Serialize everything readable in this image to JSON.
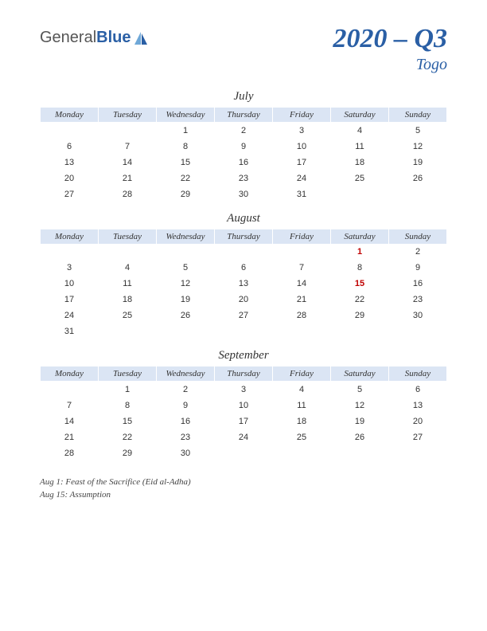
{
  "logo": {
    "part1": "General",
    "part2": "Blue"
  },
  "title": "2020 – Q3",
  "subtitle": "Togo",
  "weekdays": [
    "Monday",
    "Tuesday",
    "Wednesday",
    "Thursday",
    "Friday",
    "Saturday",
    "Sunday"
  ],
  "colors": {
    "accent": "#2a5fa5",
    "header_bg": "#dbe5f4",
    "holiday": "#c00000",
    "text": "#333333",
    "background": "#ffffff"
  },
  "months": [
    {
      "name": "July",
      "weeks": [
        [
          "",
          "",
          "1",
          "2",
          "3",
          "4",
          "5"
        ],
        [
          "6",
          "7",
          "8",
          "9",
          "10",
          "11",
          "12"
        ],
        [
          "13",
          "14",
          "15",
          "16",
          "17",
          "18",
          "19"
        ],
        [
          "20",
          "21",
          "22",
          "23",
          "24",
          "25",
          "26"
        ],
        [
          "27",
          "28",
          "29",
          "30",
          "31",
          "",
          ""
        ]
      ],
      "holidays_at": []
    },
    {
      "name": "August",
      "weeks": [
        [
          "",
          "",
          "",
          "",
          "",
          "1",
          "2"
        ],
        [
          "3",
          "4",
          "5",
          "6",
          "7",
          "8",
          "9"
        ],
        [
          "10",
          "11",
          "12",
          "13",
          "14",
          "15",
          "16"
        ],
        [
          "17",
          "18",
          "19",
          "20",
          "21",
          "22",
          "23"
        ],
        [
          "24",
          "25",
          "26",
          "27",
          "28",
          "29",
          "30"
        ],
        [
          "31",
          "",
          "",
          "",
          "",
          "",
          ""
        ]
      ],
      "holidays_at": [
        [
          0,
          5
        ],
        [
          2,
          5
        ]
      ]
    },
    {
      "name": "September",
      "weeks": [
        [
          "",
          "1",
          "2",
          "3",
          "4",
          "5",
          "6"
        ],
        [
          "7",
          "8",
          "9",
          "10",
          "11",
          "12",
          "13"
        ],
        [
          "14",
          "15",
          "16",
          "17",
          "18",
          "19",
          "20"
        ],
        [
          "21",
          "22",
          "23",
          "24",
          "25",
          "26",
          "27"
        ],
        [
          "28",
          "29",
          "30",
          "",
          "",
          "",
          ""
        ]
      ],
      "holidays_at": []
    }
  ],
  "holiday_notes": [
    "Aug 1: Feast of the Sacrifice (Eid al-Adha)",
    "Aug 15: Assumption"
  ]
}
